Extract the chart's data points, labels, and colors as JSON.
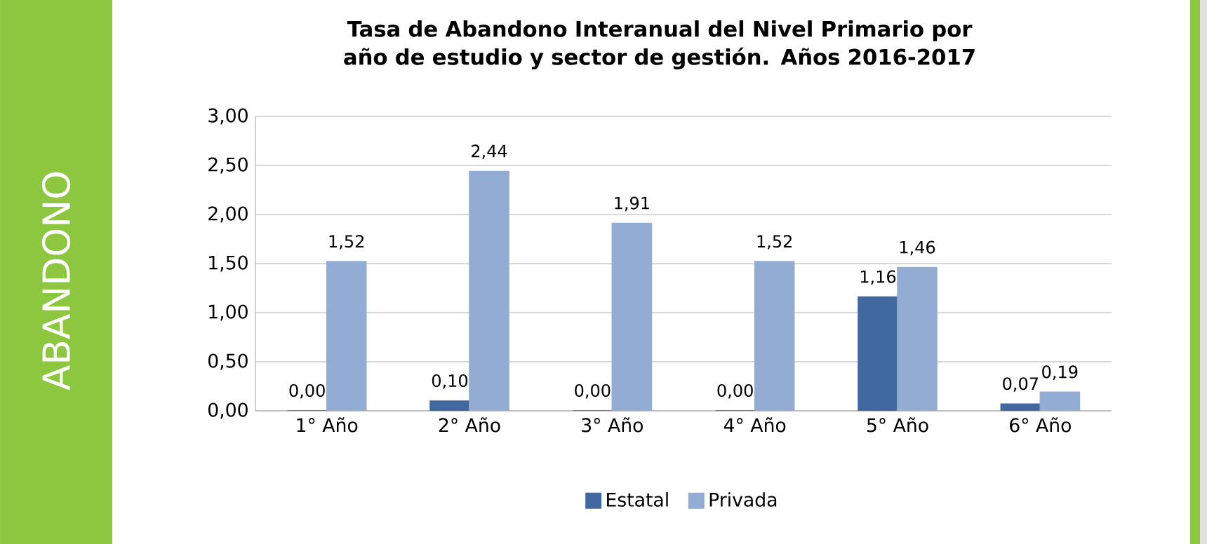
{
  "chart_data": {
    "type": "bar",
    "title": "Tasa de Abandono Interanual del Nivel Primario por año de estudio y sector de gestión. Años 2016-2017",
    "annotations": [
      "ABANDONO"
    ],
    "categories": [
      "1° Año",
      "2° Año",
      "3° Año",
      "4° Año",
      "5° Año",
      "6° Año"
    ],
    "series": [
      {
        "name": "Estatal",
        "color": "#41699f",
        "values": [
          0.0,
          0.1,
          0.0,
          0.0,
          1.16,
          0.07
        ],
        "value_labels": [
          "0,00",
          "0,10",
          "0,00",
          "0,00",
          "1,16",
          "0,07"
        ]
      },
      {
        "name": "Privada",
        "color": "#93acd4",
        "values": [
          1.52,
          2.44,
          1.91,
          1.52,
          1.46,
          0.19
        ],
        "value_labels": [
          "1,52",
          "2,44",
          "1,91",
          "1,52",
          "1,46",
          "0,19"
        ]
      }
    ],
    "ylim": [
      0,
      3
    ],
    "yticks": [
      {
        "value": 0,
        "label": "0,00"
      },
      {
        "value": 0.5,
        "label": "0,50"
      },
      {
        "value": 1,
        "label": "1,00"
      },
      {
        "value": 1.5,
        "label": "1,50"
      },
      {
        "value": 2,
        "label": "2,00"
      },
      {
        "value": 2.5,
        "label": "2,50"
      },
      {
        "value": 3,
        "label": "3,00"
      }
    ],
    "grid": "y",
    "legend": "bottom"
  }
}
